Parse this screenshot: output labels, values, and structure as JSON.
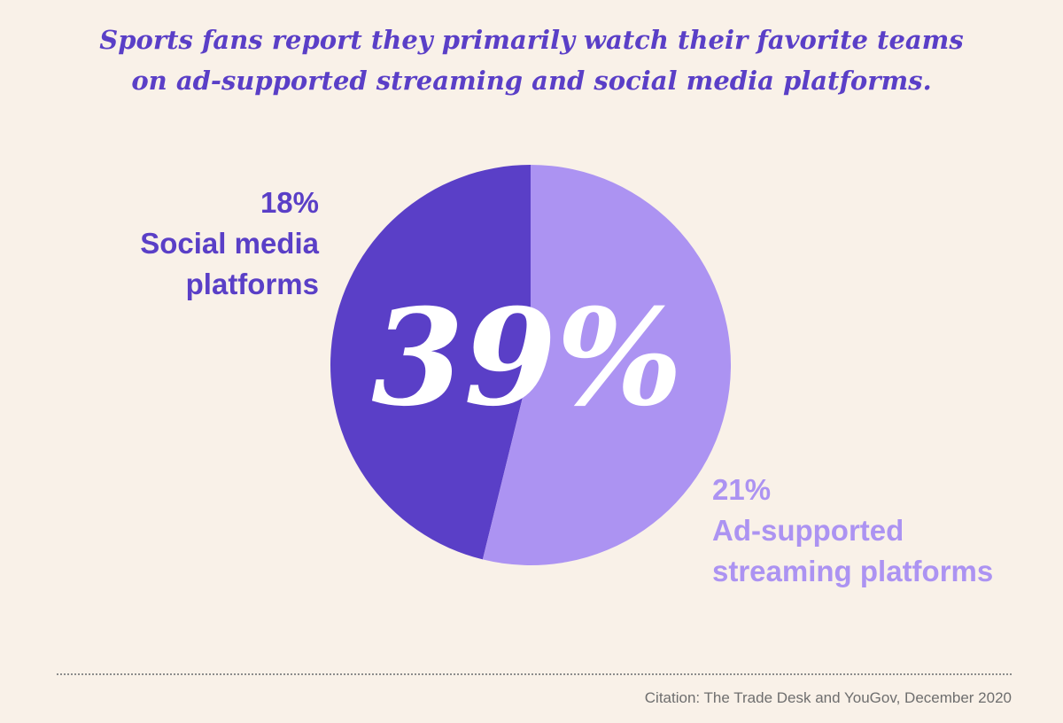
{
  "title_lines": [
    "Sports fans report they primarily watch their favorite teams",
    "on ad-supported streaming and social media platforms."
  ],
  "chart_data": {
    "type": "pie",
    "title": "Sports fans report they primarily watch their favorite teams on ad-supported streaming and social media platforms.",
    "center_label": "39%",
    "slices": [
      {
        "percent_label": "18%",
        "label_lines": [
          "Social media",
          "platforms"
        ],
        "value": 18,
        "color": "#5a3fc7"
      },
      {
        "percent_label": "21%",
        "label_lines": [
          "Ad-supported",
          "streaming platforms"
        ],
        "value": 21,
        "color": "#ac93f2"
      }
    ]
  },
  "citation": "Citation: The Trade Desk and YouGov, December 2020"
}
